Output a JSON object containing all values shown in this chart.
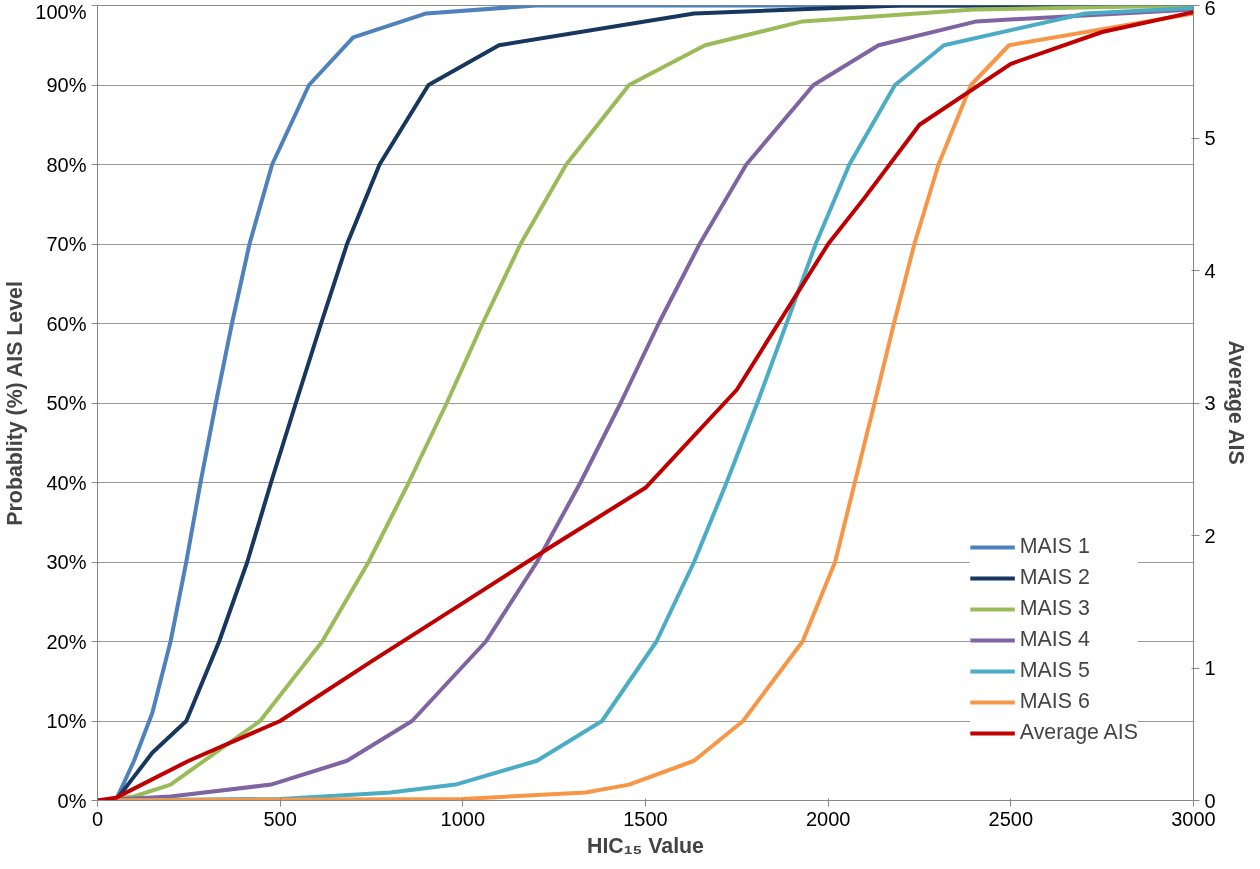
{
  "chart_data": {
    "type": "line",
    "xlabel": "HIC₁₅ Value",
    "ylabel": "Probablity (%) AIS Level",
    "y2label": "Average AIS",
    "xlim": [
      0,
      3000
    ],
    "xticks": [
      0,
      500,
      1000,
      1500,
      2000,
      2500,
      3000
    ],
    "ylim": [
      0,
      100
    ],
    "yticks": [
      {
        "value": 0,
        "label": "0%"
      },
      {
        "value": 10,
        "label": "10%"
      },
      {
        "value": 20,
        "label": "20%"
      },
      {
        "value": 30,
        "label": "30%"
      },
      {
        "value": 40,
        "label": "40%"
      },
      {
        "value": 50,
        "label": "50%"
      },
      {
        "value": 60,
        "label": "60%"
      },
      {
        "value": 70,
        "label": "70%"
      },
      {
        "value": 80,
        "label": "80%"
      },
      {
        "value": 90,
        "label": "90%"
      },
      {
        "value": 100,
        "label": "100%"
      }
    ],
    "y2lim": [
      0,
      6
    ],
    "y2ticks": [
      0,
      1,
      2,
      3,
      4,
      5,
      6
    ],
    "grid": "y",
    "legend": "bottom right",
    "marker": "none",
    "line_style": "solid",
    "series": [
      {
        "name": "MAIS 1",
        "color": "#4f81bd",
        "x": [
          0,
          50,
          100,
          150,
          200,
          243,
          282,
          324,
          368,
          416,
          478,
          579,
          700,
          900,
          1200,
          3000
        ],
        "values": [
          0,
          0,
          5,
          11,
          20,
          30,
          40,
          50,
          60,
          70,
          80,
          90,
          96,
          99,
          100,
          100
        ]
      },
      {
        "name": "MAIS 2",
        "color": "#17375e",
        "x": [
          0,
          50,
          100,
          150,
          243,
          333,
          410,
          475,
          543,
          612,
          683,
          772,
          906,
          1099,
          1633,
          2200,
          3000
        ],
        "values": [
          0,
          0,
          3,
          6,
          10,
          20,
          30,
          40,
          50,
          60,
          70,
          80,
          90,
          95,
          99,
          100,
          100
        ]
      },
      {
        "name": "MAIS 3",
        "color": "#9bbb59",
        "x": [
          0,
          100,
          200,
          445,
          615,
          742,
          852,
          956,
          1054,
          1158,
          1283,
          1455,
          1663,
          1930,
          2400,
          3000
        ],
        "values": [
          0,
          0.5,
          2,
          10,
          20,
          30,
          40,
          50,
          60,
          70,
          80,
          90,
          95,
          98,
          99.5,
          100
        ]
      },
      {
        "name": "MAIS 4",
        "color": "#8064a2",
        "x": [
          0,
          200,
          475,
          683,
          861,
          1063,
          1203,
          1322,
          1432,
          1536,
          1648,
          1776,
          1960,
          2138,
          2406,
          3000
        ],
        "values": [
          0,
          0.5,
          2,
          5,
          10,
          20,
          30,
          40,
          50,
          60,
          70,
          80,
          90,
          95,
          98,
          99.5
        ]
      },
      {
        "name": "MAIS 5",
        "color": "#4bacc6",
        "x": [
          0,
          500,
          802,
          980,
          1203,
          1381,
          1530,
          1633,
          1722,
          1806,
          1886,
          1966,
          2058,
          2183,
          2317,
          2703,
          3000
        ],
        "values": [
          0,
          0.2,
          1,
          2,
          5,
          10,
          20,
          30,
          40,
          50,
          60,
          70,
          80,
          90,
          95,
          99,
          99.7
        ]
      },
      {
        "name": "MAIS 6",
        "color": "#f79646",
        "x": [
          0,
          1000,
          1336,
          1455,
          1633,
          1767,
          1930,
          2019,
          2073,
          2127,
          2180,
          2236,
          2302,
          2391,
          2495,
          3000
        ],
        "values": [
          0,
          0.2,
          1,
          2,
          5,
          10,
          20,
          30,
          40,
          50,
          60,
          70,
          80,
          90,
          95,
          99
        ]
      },
      {
        "name": "Average AIS",
        "color": "#c00000",
        "axis": "y2",
        "x": [
          0,
          50,
          250,
          500,
          750,
          1000,
          1250,
          1500,
          1750,
          2000,
          2100,
          2250,
          2500,
          2750,
          3000
        ],
        "values": [
          0,
          0.02,
          0.3,
          0.6,
          1.05,
          1.49,
          1.93,
          2.36,
          3.1,
          4.2,
          4.55,
          5.1,
          5.56,
          5.8,
          5.95
        ]
      }
    ]
  }
}
